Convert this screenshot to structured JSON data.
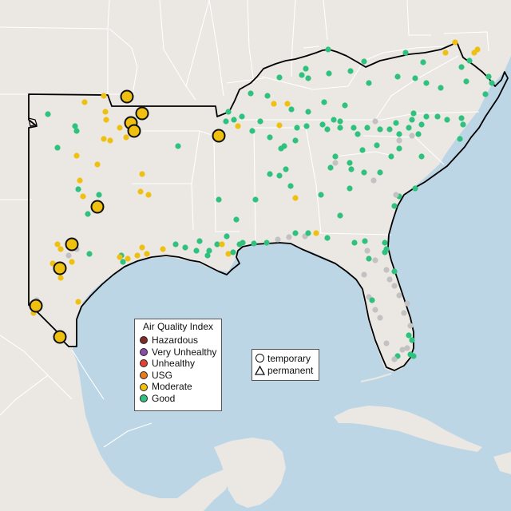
{
  "colors": {
    "ocean": "#bcd6e6",
    "land": "#ebe7e3",
    "border": "#ffffff",
    "outline": "#000000"
  },
  "legend": {
    "title": "Air Quality Index",
    "items": [
      {
        "label": "Hazardous",
        "color": "#7e2b2b"
      },
      {
        "label": "Very Unhealthy",
        "color": "#8b4ca6"
      },
      {
        "label": "Unhealthy",
        "color": "#e34234"
      },
      {
        "label": "USG",
        "color": "#ea7b1c"
      },
      {
        "label": "Moderate",
        "color": "#f0c010"
      },
      {
        "label": "Good",
        "color": "#2ec27e"
      }
    ]
  },
  "shape_legend": {
    "items": [
      {
        "label": "temporary",
        "icon": "circle-outline"
      },
      {
        "label": "permanent",
        "icon": "triangle-outline"
      }
    ]
  },
  "sensor_colors": {
    "good": "#2ec27e",
    "moderate": "#f0c010",
    "unknown": "#c2c2c2"
  }
}
